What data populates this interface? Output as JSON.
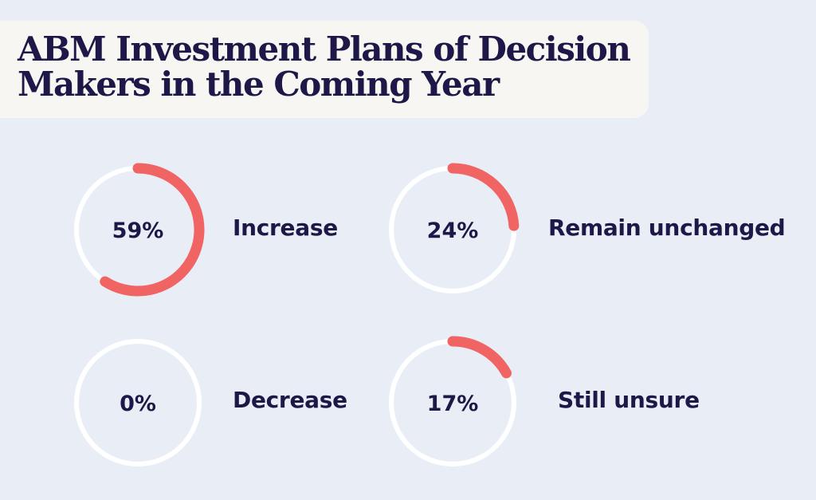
{
  "chart_data": {
    "type": "donut",
    "title_lines": [
      "ABM Investment Plans of Decision",
      "Makers in the Coming Year"
    ],
    "items": [
      {
        "label": "Increase",
        "value": 59,
        "value_label": "59%"
      },
      {
        "label": "Remain unchanged",
        "value": 24,
        "value_label": "24%"
      },
      {
        "label": "Decrease",
        "value": 0,
        "value_label": "0%"
      },
      {
        "label": "Still unsure",
        "value": 17,
        "value_label": "17%"
      }
    ]
  },
  "colors": {
    "background": "#e9eef6",
    "track": "#ffffff",
    "arc": "#f06464",
    "text": "#1d1847"
  }
}
